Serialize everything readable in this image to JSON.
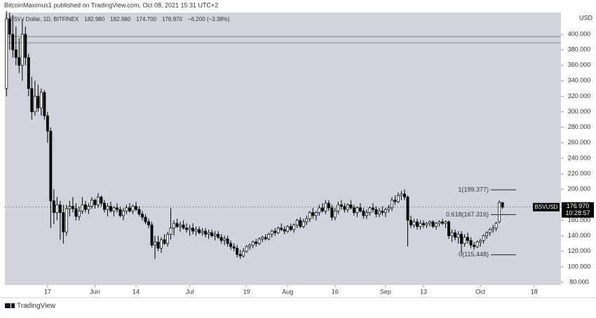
{
  "chart_data": {
    "type": "candlestick",
    "header": "BitcoinMaximus1 published on TradingView.com, Oct 08, 2021 15:31 UTC+2",
    "legend_text": "BSV / Dollar, 1D, BITFINEX",
    "legend_values": [
      "182.980",
      "182.980",
      "174.700",
      "176.970",
      "−6.200 (−3.38%)"
    ],
    "currency": "USD",
    "symbol": "BSVUSD",
    "last_price": {
      "value": 176.97,
      "label": "176.970"
    },
    "countdown": "10:28:57",
    "footer": "TradingView",
    "up_color": "#ffffff",
    "down_color": "#000000",
    "background": "#d1d4dc",
    "ylim": [
      76.4,
      428
    ],
    "yticks": [
      {
        "value": 80,
        "label": "80.000"
      },
      {
        "value": 100,
        "label": "100.000"
      },
      {
        "value": 120,
        "label": "120.000"
      },
      {
        "value": 140,
        "label": "140.000"
      },
      {
        "value": 160,
        "label": "160.000"
      },
      {
        "value": 180,
        "label": "180.000"
      },
      {
        "value": 200,
        "label": "200.000"
      },
      {
        "value": 220,
        "label": "220.000"
      },
      {
        "value": 240,
        "label": "240.000"
      },
      {
        "value": 260,
        "label": "260.000"
      },
      {
        "value": 280,
        "label": "280.000"
      },
      {
        "value": 300,
        "label": "300.000"
      },
      {
        "value": 320,
        "label": "320.000"
      },
      {
        "value": 340,
        "label": "340.000"
      },
      {
        "value": 360,
        "label": "360.000"
      },
      {
        "value": 380,
        "label": "380.000"
      },
      {
        "value": 400,
        "label": "400.000"
      }
    ],
    "xlim": [
      -0.5,
      175.5
    ],
    "xticks": [
      {
        "value": 13,
        "label": "17"
      },
      {
        "value": 28,
        "label": "Jun"
      },
      {
        "value": 41,
        "label": "14"
      },
      {
        "value": 58,
        "label": "Jul"
      },
      {
        "value": 76,
        "label": "19"
      },
      {
        "value": 89,
        "label": "Aug"
      },
      {
        "value": 104,
        "label": "16"
      },
      {
        "value": 120,
        "label": "Sep"
      },
      {
        "value": 132,
        "label": "13"
      },
      {
        "value": 150,
        "label": "Oct"
      },
      {
        "value": 167,
        "label": "18"
      }
    ],
    "hlines": [
      397,
      389
    ],
    "fib_levels": [
      {
        "value": 199.377,
        "label": "1(199.377)"
      },
      {
        "value": 167.316,
        "label": "0.618(167.316)"
      },
      {
        "value": 115.448,
        "label": "0(115.448)"
      }
    ],
    "ohlc": [
      [
        330,
        430,
        320,
        420
      ],
      [
        420,
        428,
        380,
        400
      ],
      [
        400,
        425,
        370,
        380
      ],
      [
        380,
        410,
        360,
        370
      ],
      [
        370,
        395,
        350,
        360
      ],
      [
        360,
        420,
        340,
        400
      ],
      [
        400,
        410,
        360,
        370
      ],
      [
        370,
        375,
        320,
        330
      ],
      [
        330,
        345,
        290,
        300
      ],
      [
        300,
        340,
        295,
        320
      ],
      [
        320,
        335,
        300,
        305
      ],
      [
        305,
        330,
        295,
        325
      ],
      [
        325,
        328,
        290,
        295
      ],
      [
        295,
        300,
        260,
        275
      ],
      [
        275,
        280,
        150,
        185
      ],
      [
        185,
        200,
        155,
        170
      ],
      [
        170,
        190,
        160,
        180
      ],
      [
        180,
        185,
        135,
        170
      ],
      [
        170,
        180,
        130,
        145
      ],
      [
        145,
        180,
        140,
        175
      ],
      [
        175,
        185,
        165,
        178
      ],
      [
        178,
        190,
        170,
        175
      ],
      [
        175,
        182,
        160,
        165
      ],
      [
        165,
        178,
        160,
        172
      ],
      [
        172,
        190,
        168,
        180
      ],
      [
        180,
        185,
        170,
        174
      ],
      [
        174,
        182,
        168,
        178
      ],
      [
        178,
        190,
        175,
        186
      ],
      [
        186,
        188,
        175,
        180
      ],
      [
        180,
        195,
        176,
        190
      ],
      [
        190,
        192,
        178,
        182
      ],
      [
        182,
        186,
        170,
        174
      ],
      [
        174,
        182,
        165,
        178
      ],
      [
        178,
        184,
        170,
        172
      ],
      [
        172,
        178,
        165,
        176
      ],
      [
        176,
        182,
        170,
        174
      ],
      [
        174,
        178,
        164,
        166
      ],
      [
        166,
        176,
        160,
        172
      ],
      [
        172,
        180,
        168,
        176
      ],
      [
        176,
        182,
        170,
        172
      ],
      [
        172,
        180,
        168,
        178
      ],
      [
        178,
        184,
        172,
        174
      ],
      [
        174,
        178,
        165,
        168
      ],
      [
        168,
        172,
        160,
        164
      ],
      [
        164,
        168,
        155,
        158
      ],
      [
        158,
        162,
        150,
        154
      ],
      [
        154,
        158,
        125,
        128
      ],
      [
        128,
        140,
        110,
        132
      ],
      [
        132,
        140,
        120,
        124
      ],
      [
        124,
        138,
        118,
        135
      ],
      [
        135,
        142,
        128,
        130
      ],
      [
        130,
        145,
        126,
        142
      ],
      [
        142,
        176,
        135,
        150
      ],
      [
        150,
        160,
        140,
        156
      ],
      [
        156,
        162,
        150,
        152
      ],
      [
        152,
        158,
        145,
        154
      ],
      [
        154,
        160,
        148,
        150
      ],
      [
        150,
        156,
        144,
        148
      ],
      [
        148,
        154,
        140,
        150
      ],
      [
        150,
        156,
        142,
        146
      ],
      [
        146,
        152,
        140,
        148
      ],
      [
        148,
        152,
        142,
        144
      ],
      [
        144,
        150,
        140,
        146
      ],
      [
        146,
        150,
        138,
        142
      ],
      [
        142,
        148,
        136,
        144
      ],
      [
        144,
        148,
        138,
        140
      ],
      [
        140,
        146,
        134,
        142
      ],
      [
        142,
        146,
        136,
        138
      ],
      [
        138,
        142,
        130,
        134
      ],
      [
        134,
        140,
        128,
        136
      ],
      [
        136,
        140,
        126,
        130
      ],
      [
        130,
        134,
        122,
        126
      ],
      [
        126,
        130,
        120,
        124
      ],
      [
        124,
        128,
        112,
        116
      ],
      [
        116,
        122,
        110,
        114
      ],
      [
        114,
        124,
        112,
        120
      ],
      [
        120,
        128,
        118,
        126
      ],
      [
        126,
        130,
        122,
        128
      ],
      [
        128,
        134,
        124,
        132
      ],
      [
        132,
        136,
        126,
        130
      ],
      [
        130,
        138,
        128,
        136
      ],
      [
        136,
        140,
        132,
        138
      ],
      [
        138,
        142,
        134,
        136
      ],
      [
        136,
        144,
        134,
        142
      ],
      [
        142,
        148,
        138,
        146
      ],
      [
        146,
        150,
        140,
        144
      ],
      [
        144,
        152,
        142,
        150
      ],
      [
        150,
        156,
        146,
        148
      ],
      [
        148,
        152,
        142,
        146
      ],
      [
        146,
        154,
        144,
        152
      ],
      [
        152,
        156,
        146,
        148
      ],
      [
        148,
        156,
        144,
        154
      ],
      [
        154,
        162,
        150,
        160
      ],
      [
        160,
        164,
        150,
        152
      ],
      [
        152,
        162,
        150,
        158
      ],
      [
        158,
        166,
        154,
        162
      ],
      [
        162,
        172,
        158,
        170
      ],
      [
        170,
        176,
        162,
        166
      ],
      [
        166,
        172,
        160,
        170
      ],
      [
        170,
        180,
        166,
        176
      ],
      [
        176,
        182,
        170,
        172
      ],
      [
        172,
        186,
        168,
        182
      ],
      [
        182,
        186,
        172,
        176
      ],
      [
        176,
        180,
        160,
        164
      ],
      [
        164,
        176,
        160,
        172
      ],
      [
        172,
        184,
        168,
        180
      ],
      [
        180,
        186,
        174,
        178
      ],
      [
        178,
        182,
        170,
        174
      ],
      [
        174,
        182,
        170,
        180
      ],
      [
        180,
        186,
        174,
        176
      ],
      [
        176,
        180,
        166,
        170
      ],
      [
        170,
        178,
        164,
        176
      ],
      [
        176,
        182,
        170,
        172
      ],
      [
        172,
        176,
        162,
        166
      ],
      [
        166,
        174,
        162,
        170
      ],
      [
        170,
        178,
        166,
        176
      ],
      [
        176,
        182,
        170,
        174
      ],
      [
        174,
        178,
        164,
        168
      ],
      [
        168,
        176,
        164,
        172
      ],
      [
        172,
        178,
        166,
        170
      ],
      [
        170,
        176,
        164,
        174
      ],
      [
        174,
        180,
        170,
        176
      ],
      [
        176,
        190,
        172,
        186
      ],
      [
        186,
        192,
        180,
        184
      ],
      [
        184,
        196,
        182,
        192
      ],
      [
        192,
        198,
        186,
        194
      ],
      [
        194,
        200,
        186,
        190
      ],
      [
        190,
        192,
        126,
        160
      ],
      [
        160,
        166,
        150,
        154
      ],
      [
        154,
        162,
        150,
        158
      ],
      [
        158,
        162,
        148,
        152
      ],
      [
        152,
        160,
        148,
        156
      ],
      [
        156,
        160,
        150,
        154
      ],
      [
        154,
        158,
        150,
        156
      ],
      [
        156,
        160,
        152,
        158
      ],
      [
        158,
        160,
        150,
        152
      ],
      [
        152,
        158,
        148,
        156
      ],
      [
        156,
        160,
        152,
        158
      ],
      [
        158,
        162,
        154,
        156
      ],
      [
        156,
        160,
        150,
        158
      ],
      [
        158,
        160,
        136,
        140
      ],
      [
        140,
        148,
        132,
        144
      ],
      [
        144,
        148,
        134,
        138
      ],
      [
        138,
        146,
        130,
        142
      ],
      [
        142,
        146,
        118,
        130
      ],
      [
        130,
        142,
        126,
        138
      ],
      [
        138,
        144,
        130,
        134
      ],
      [
        134,
        138,
        124,
        128
      ],
      [
        128,
        132,
        122,
        126
      ],
      [
        126,
        134,
        124,
        132
      ],
      [
        132,
        136,
        126,
        134
      ],
      [
        134,
        142,
        130,
        140
      ],
      [
        140,
        146,
        136,
        144
      ],
      [
        144,
        150,
        140,
        148
      ],
      [
        148,
        154,
        144,
        150
      ],
      [
        150,
        158,
        146,
        156
      ],
      [
        158,
        186,
        156,
        182.98
      ],
      [
        182.98,
        182.98,
        174.7,
        176.97
      ]
    ]
  }
}
